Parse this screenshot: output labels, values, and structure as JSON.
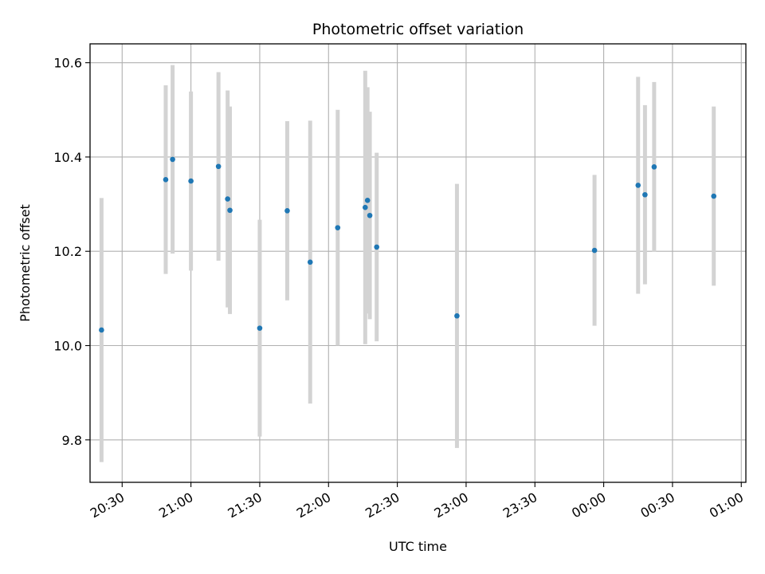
{
  "chart_data": {
    "type": "scatter",
    "title": "Photometric offset variation",
    "xlabel": "UTC time",
    "ylabel": "Photometric offset",
    "grid": true,
    "x_ticks": [
      "20:30",
      "21:00",
      "21:30",
      "22:00",
      "22:30",
      "23:00",
      "23:30",
      "00:00",
      "00:30",
      "01:00"
    ],
    "y_ticks": [
      "9.8",
      "10.0",
      "10.2",
      "10.4",
      "10.6"
    ],
    "xlim": [
      "20:16",
      "01:02"
    ],
    "ylim": [
      9.71,
      10.64
    ],
    "colors": {
      "point": "#1f77b4",
      "errorbar": "#d3d3d3",
      "grid": "#b0b0b0"
    },
    "points": [
      {
        "x": "20:21",
        "y": 10.033,
        "err": 0.28
      },
      {
        "x": "20:49",
        "y": 10.352,
        "err": 0.2
      },
      {
        "x": "20:52",
        "y": 10.395,
        "err": 0.2
      },
      {
        "x": "21:00",
        "y": 10.349,
        "err": 0.19
      },
      {
        "x": "21:12",
        "y": 10.38,
        "err": 0.2
      },
      {
        "x": "21:16",
        "y": 10.311,
        "err": 0.23
      },
      {
        "x": "21:17",
        "y": 10.287,
        "err": 0.22
      },
      {
        "x": "21:30",
        "y": 10.037,
        "err": 0.23
      },
      {
        "x": "21:42",
        "y": 10.286,
        "err": 0.19
      },
      {
        "x": "21:52",
        "y": 10.177,
        "err": 0.3
      },
      {
        "x": "22:04",
        "y": 10.25,
        "err": 0.25
      },
      {
        "x": "22:16",
        "y": 10.293,
        "err": 0.29
      },
      {
        "x": "22:17",
        "y": 10.308,
        "err": 0.24
      },
      {
        "x": "22:18",
        "y": 10.276,
        "err": 0.22
      },
      {
        "x": "22:21",
        "y": 10.209,
        "err": 0.2
      },
      {
        "x": "22:56",
        "y": 10.063,
        "err": 0.28
      },
      {
        "x": "23:56",
        "y": 10.202,
        "err": 0.16
      },
      {
        "x": "00:15",
        "y": 10.34,
        "err": 0.23
      },
      {
        "x": "00:18",
        "y": 10.32,
        "err": 0.19
      },
      {
        "x": "00:22",
        "y": 10.379,
        "err": 0.18
      },
      {
        "x": "00:48",
        "y": 10.317,
        "err": 0.19
      }
    ]
  }
}
